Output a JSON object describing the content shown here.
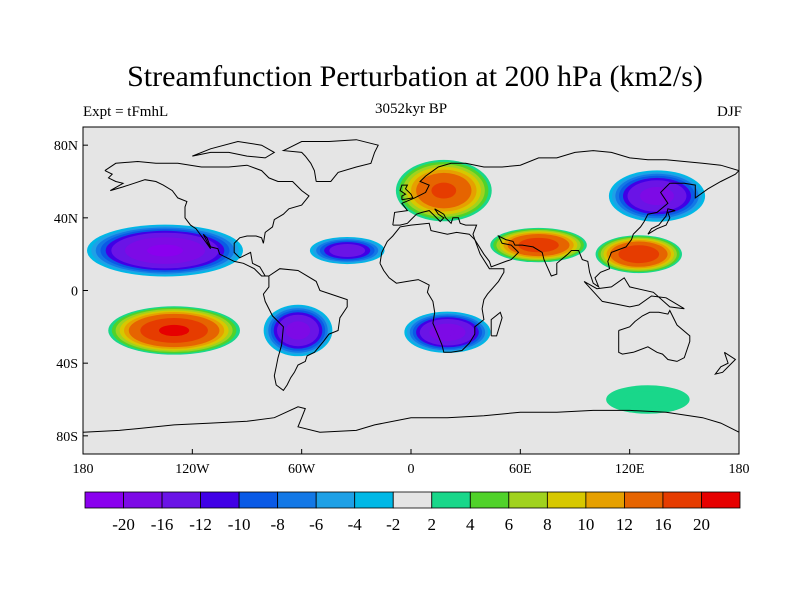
{
  "title": "Streamfunction Perturbation at 200 hPa (km2/s)",
  "left_label": "Expt = tFmhL",
  "center_label": "3052kyr BP",
  "right_label": "DJF",
  "map": {
    "x_ticks": [
      "180",
      "120W",
      "60W",
      "0",
      "60E",
      "120E",
      "180"
    ],
    "y_ticks": [
      "80N",
      "40N",
      "0",
      "40S",
      "80S"
    ],
    "y_tick_values": [
      80,
      40,
      0,
      -40,
      -80
    ],
    "lon_range": [
      -180,
      180
    ],
    "lat_range": [
      -90,
      90
    ],
    "background_color": "#e5e5e5",
    "anomalies": [
      {
        "lon": -135,
        "lat": 22,
        "rx": 45,
        "ry": 15,
        "value": -21
      },
      {
        "lon": -130,
        "lat": -22,
        "rx": 38,
        "ry": 14,
        "value": 21
      },
      {
        "lon": -62,
        "lat": -22,
        "rx": 20,
        "ry": 15,
        "value": -18
      },
      {
        "lon": -35,
        "lat": 22,
        "rx": 22,
        "ry": 8,
        "value": -15
      },
      {
        "lon": 20,
        "lat": -23,
        "rx": 25,
        "ry": 12,
        "value": -19
      },
      {
        "lon": 18,
        "lat": 55,
        "rx": 28,
        "ry": 18,
        "value": 17
      },
      {
        "lon": 70,
        "lat": 25,
        "rx": 28,
        "ry": 10,
        "value": 19
      },
      {
        "lon": 125,
        "lat": 20,
        "rx": 25,
        "ry": 11,
        "value": 20
      },
      {
        "lon": 135,
        "lat": 52,
        "rx": 28,
        "ry": 15,
        "value": -18
      },
      {
        "lon": 130,
        "lat": -60,
        "rx": 35,
        "ry": 12,
        "value": 3.5
      }
    ]
  },
  "colorbar": {
    "labels": [
      "-20",
      "-16",
      "-12",
      "-10",
      "-8",
      "-6",
      "-4",
      "-2",
      "2",
      "4",
      "6",
      "8",
      "10",
      "12",
      "16",
      "20"
    ],
    "colors": [
      "#8a00ee",
      "#7d0ae6",
      "#6a14e6",
      "#4000e6",
      "#0a5ae6",
      "#1378e6",
      "#1ea0e6",
      "#00b8e6",
      "#e5e5e5",
      "#19d78a",
      "#50d22a",
      "#a0d21e",
      "#d7c800",
      "#e6a000",
      "#e66400",
      "#e63c00",
      "#e60000"
    ]
  }
}
